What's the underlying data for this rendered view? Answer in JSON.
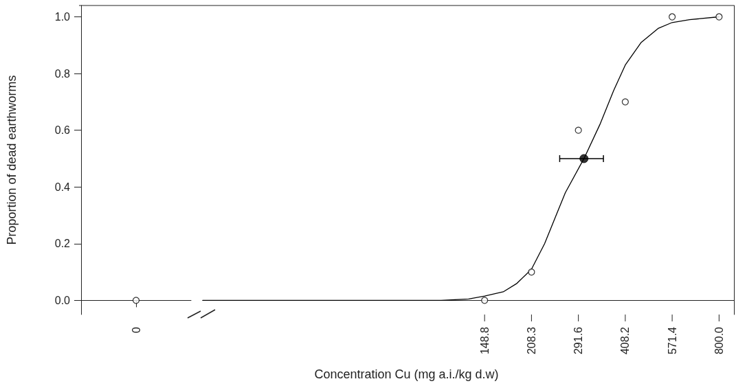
{
  "chart_data": [
    {
      "type": "scatter",
      "ylabel": "Proportion of dead earthworms",
      "categories": [
        "0"
      ],
      "series": [
        {
          "color": "#000000",
          "values": [
            0
          ]
        }
      ],
      "ylim": [
        -0.05,
        1.04
      ],
      "yticks": [
        {
          "value": 0,
          "label": "0.0"
        },
        {
          "value": 0.2,
          "label": "0.2"
        },
        {
          "value": 0.4,
          "label": "0.4"
        },
        {
          "value": 0.6,
          "label": "0.6"
        },
        {
          "value": 0.8,
          "label": "0.8"
        },
        {
          "value": 1,
          "label": "1.0"
        }
      ],
      "marker": "circle",
      "grid": false
    },
    {
      "type": "scatter",
      "xlabel": "Concentration Cu (mg a.i./kg d.w)",
      "log": "x",
      "series": [
        {
          "color": "#000000",
          "x": [
            148.8,
            208.3,
            291.6,
            408.2,
            571.4,
            800.0
          ],
          "values": [
            0,
            0.1,
            0.6,
            0.7,
            1.0,
            1.0
          ]
        },
        {
          "type": "line",
          "color": "#000000",
          "marker": "none",
          "line_style": "solid",
          "x": [
            19.7,
            108.9,
            132.7,
            148.8,
            170.1,
            187.7,
            208.3,
            228.9,
            252.7,
            265.6,
            303.5,
            340.2,
            375.6,
            408.2,
            457.7,
            518.1,
            571.4,
            647.3,
            800.0
          ],
          "values": [
            0,
            0,
            0.005,
            0.015,
            0.03,
            0.06,
            0.11,
            0.2,
            0.32,
            0.38,
            0.5,
            0.62,
            0.74,
            0.83,
            0.91,
            0.96,
            0.98,
            0.99,
            1.0
          ]
        },
        {
          "color": "#000000",
          "x": [
            303.5
          ],
          "values": [
            0.5
          ],
          "xerrors": [
            [
              255,
              349
            ]
          ]
        }
      ],
      "xlim": [
        19.7,
        890
      ],
      "xticks": [
        148.8,
        208.3,
        291.6,
        408.2,
        571.4,
        {
          "value": 800,
          "label": "800.0"
        }
      ],
      "ylim": [
        -0.05,
        1.04
      ],
      "tick_labels": "x",
      "marker": "circle",
      "grid": false
    }
  ]
}
